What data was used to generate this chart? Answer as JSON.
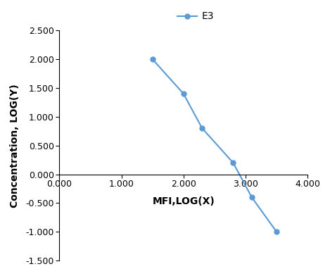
{
  "x": [
    1.5,
    2.0,
    2.3,
    2.8,
    3.1,
    3.5
  ],
  "y": [
    2.0,
    1.4,
    0.8,
    0.2,
    -0.4,
    -1.0
  ],
  "line_color": "#5B9BD5",
  "marker": "o",
  "marker_size": 5,
  "legend_label": "E3",
  "xlabel": "MFI,LOG(X)",
  "ylabel": "Concentration, LOG(Y)",
  "xlim": [
    0.0,
    4.0
  ],
  "ylim": [
    -1.5,
    2.5
  ],
  "xticks": [
    0.0,
    1.0,
    2.0,
    3.0,
    4.0
  ],
  "yticks": [
    -1.5,
    -1.0,
    -0.5,
    0.0,
    0.5,
    1.0,
    1.5,
    2.0,
    2.5
  ],
  "axis_label_fontsize": 10,
  "tick_fontsize": 9,
  "legend_fontsize": 10,
  "background_color": "#ffffff"
}
